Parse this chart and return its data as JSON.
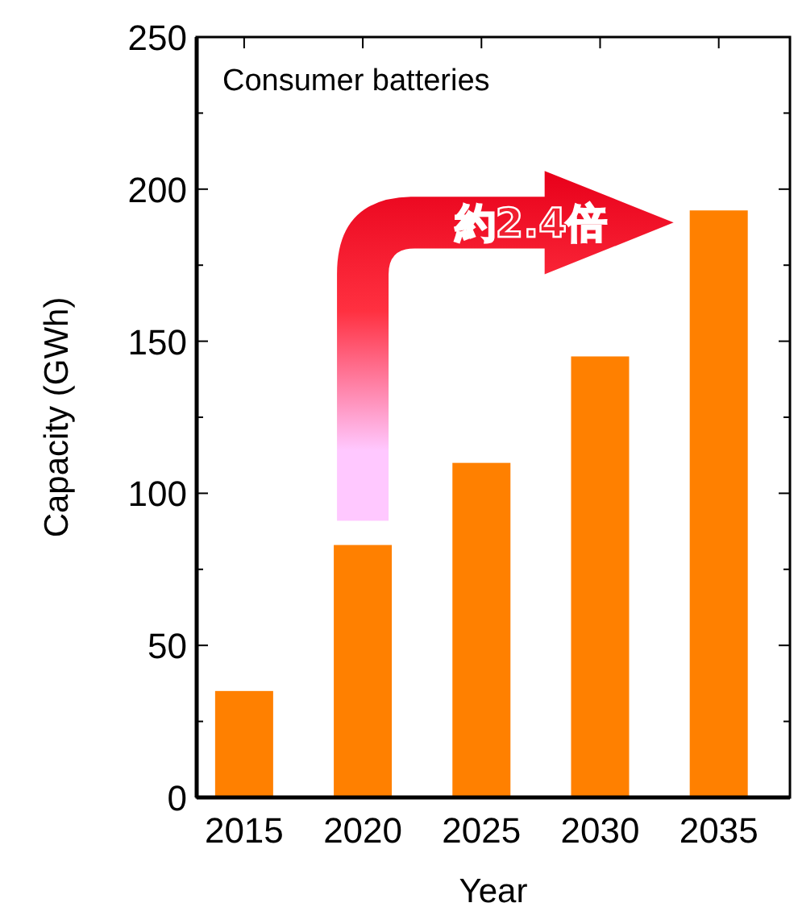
{
  "chart_data": {
    "type": "bar",
    "title": "Consumer batteries",
    "xlabel": "Year",
    "ylabel": "Capacity (GWh)",
    "categories": [
      "2015",
      "2020",
      "2025",
      "2030",
      "2035"
    ],
    "values": [
      35,
      83,
      110,
      145,
      193
    ],
    "color": "#ff8000",
    "ylim": [
      0,
      250
    ],
    "yticks": [
      0,
      {
        "value": 25,
        "label": null
      },
      50,
      {
        "value": 75,
        "label": null
      },
      100,
      {
        "value": 125,
        "label": null
      },
      150,
      {
        "value": 175,
        "label": null
      },
      200,
      {
        "value": 225,
        "label": null
      },
      250
    ],
    "annotations": [
      "約2.4倍"
    ]
  }
}
